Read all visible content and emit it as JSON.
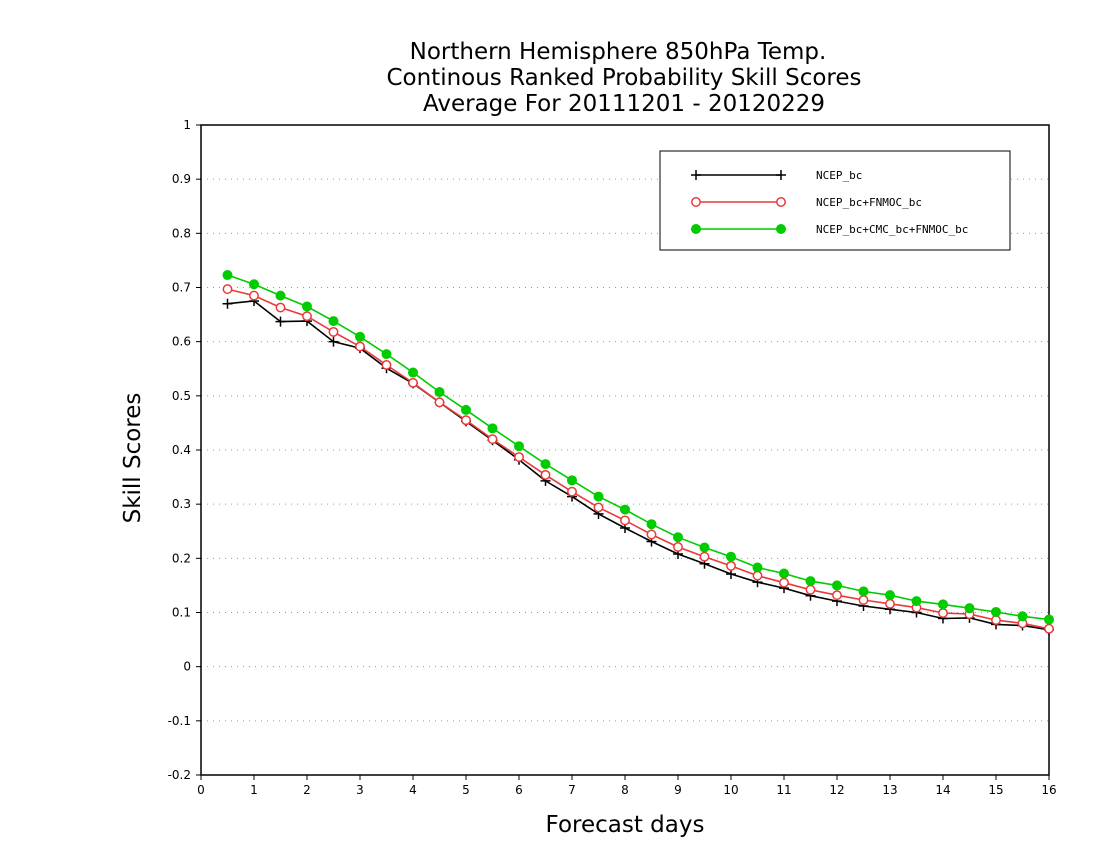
{
  "chart_data": {
    "type": "line",
    "title": [
      "Northern Hemisphere 850hPa Temp.",
      "Continous Ranked Probability Skill Scores",
      "Average For 20111201 - 20120229"
    ],
    "xlabel": "Forecast days",
    "ylabel": "Skill Scores",
    "xlim": [
      0,
      16
    ],
    "ylim": [
      -0.2,
      1
    ],
    "xticks": [
      0,
      1,
      2,
      3,
      4,
      5,
      6,
      7,
      8,
      9,
      10,
      11,
      12,
      13,
      14,
      15,
      16
    ],
    "xtick_labels": [
      "0",
      "1",
      "2",
      "3",
      "4",
      "5",
      "6",
      "7",
      "8",
      "9",
      "10",
      "11",
      "12",
      "13",
      "14",
      "15",
      "16"
    ],
    "yticks": [
      -0.2,
      -0.1,
      0,
      0.1,
      0.2,
      0.3,
      0.4,
      0.5,
      0.6,
      0.7,
      0.8,
      0.9,
      1
    ],
    "ytick_labels": [
      "-0.2",
      "-0.1",
      "0",
      "0.1",
      "0.2",
      "0.3",
      "0.4",
      "0.5",
      "0.6",
      "0.7",
      "0.8",
      "0.9",
      "1"
    ],
    "grid": "horizontal dotted",
    "legend_position": "top-right",
    "x": [
      0.5,
      1,
      1.5,
      2,
      2.5,
      3,
      3.5,
      4,
      4.5,
      5,
      5.5,
      6,
      6.5,
      7,
      7.5,
      8,
      8.5,
      9,
      9.5,
      10,
      10.5,
      11,
      11.5,
      12,
      12.5,
      13,
      13.5,
      14,
      14.5,
      15,
      15.5,
      16
    ],
    "series": [
      {
        "name": "NCEP_bc",
        "color": "#000000",
        "marker": "plus",
        "values": [
          0.67,
          0.675,
          0.637,
          0.638,
          0.6,
          0.588,
          0.551,
          0.523,
          0.488,
          0.453,
          0.418,
          0.382,
          0.343,
          0.314,
          0.282,
          0.256,
          0.231,
          0.208,
          0.19,
          0.171,
          0.156,
          0.145,
          0.131,
          0.121,
          0.112,
          0.106,
          0.1,
          0.089,
          0.09,
          0.078,
          0.076,
          0.068
        ]
      },
      {
        "name": "NCEP_bc+FNMOC_bc",
        "color": "#e83a3a",
        "marker": "open-circle",
        "values": [
          0.697,
          0.685,
          0.663,
          0.647,
          0.618,
          0.591,
          0.557,
          0.524,
          0.488,
          0.455,
          0.42,
          0.387,
          0.354,
          0.323,
          0.294,
          0.27,
          0.244,
          0.221,
          0.203,
          0.186,
          0.168,
          0.155,
          0.142,
          0.132,
          0.123,
          0.116,
          0.109,
          0.099,
          0.097,
          0.086,
          0.08,
          0.07
        ]
      },
      {
        "name": "NCEP_bc+CMC_bc+FNMOC_bc",
        "color": "#00cc00",
        "marker": "filled-circle",
        "values": [
          0.723,
          0.706,
          0.685,
          0.665,
          0.638,
          0.609,
          0.577,
          0.543,
          0.507,
          0.474,
          0.44,
          0.407,
          0.374,
          0.344,
          0.314,
          0.29,
          0.263,
          0.239,
          0.22,
          0.203,
          0.183,
          0.172,
          0.158,
          0.15,
          0.139,
          0.132,
          0.121,
          0.115,
          0.108,
          0.101,
          0.093,
          0.087
        ]
      }
    ]
  }
}
